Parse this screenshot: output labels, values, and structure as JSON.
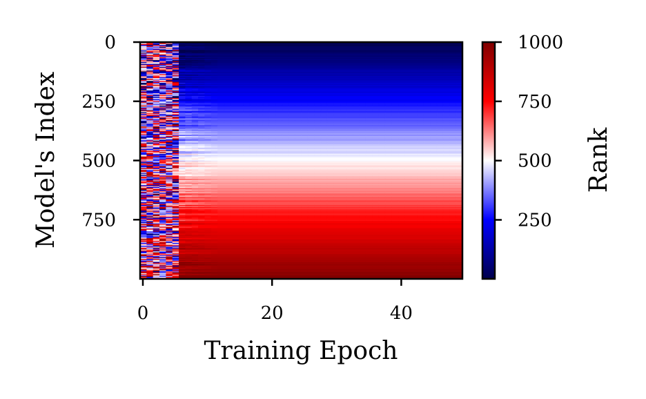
{
  "chart_data": {
    "type": "heatmap",
    "xlabel": "Training Epoch",
    "ylabel": "Model's Index",
    "colorbar_label": "Rank",
    "x_ticks": [
      "0",
      "20",
      "40"
    ],
    "x_tick_values": [
      0,
      20,
      40
    ],
    "y_ticks": [
      "0",
      "250",
      "500",
      "750"
    ],
    "y_tick_values": [
      0,
      250,
      500,
      750
    ],
    "colorbar_ticks": [
      "250",
      "500",
      "750",
      "1000"
    ],
    "colorbar_tick_values": [
      250,
      500,
      750,
      1000
    ],
    "x_range": [
      0,
      50
    ],
    "y_range": [
      0,
      1000
    ],
    "value_range": [
      1,
      1000
    ],
    "n_models": 1000,
    "n_epochs": 50,
    "colormap": "seismic",
    "colormap_stops": [
      "#00004c",
      "#0000ff",
      "#ffffff",
      "#ff0000",
      "#800000"
    ],
    "pattern": "Final-epoch rank increases with model index (blue at top, red at bottom); early epochs show noisy, mixed ranks that converge to the final ordering over training."
  }
}
